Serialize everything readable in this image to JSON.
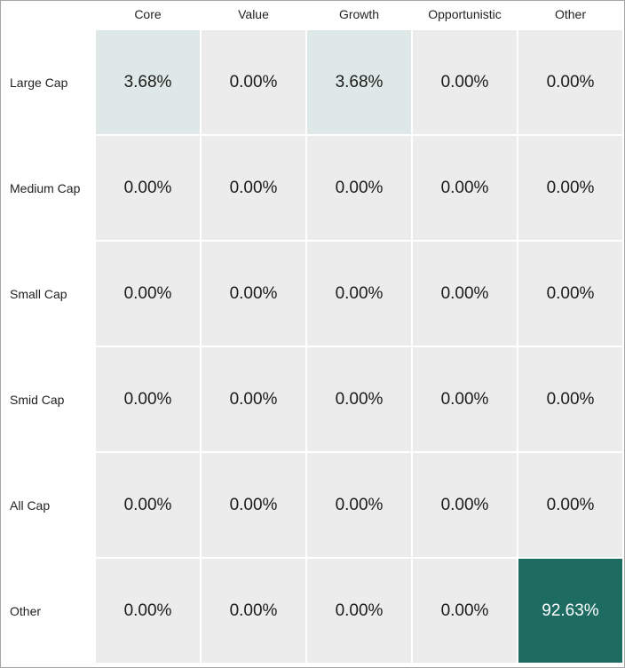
{
  "chart_data": {
    "type": "heatmap",
    "columns": [
      "Core",
      "Value",
      "Growth",
      "Opportunistic",
      "Other"
    ],
    "rows": [
      "Large Cap",
      "Medium Cap",
      "Small Cap",
      "Smid Cap",
      "All Cap",
      "Other"
    ],
    "values": [
      [
        3.68,
        0.0,
        3.68,
        0.0,
        0.0
      ],
      [
        0.0,
        0.0,
        0.0,
        0.0,
        0.0
      ],
      [
        0.0,
        0.0,
        0.0,
        0.0,
        0.0
      ],
      [
        0.0,
        0.0,
        0.0,
        0.0,
        0.0
      ],
      [
        0.0,
        0.0,
        0.0,
        0.0,
        0.0
      ],
      [
        0.0,
        0.0,
        0.0,
        0.0,
        92.63
      ]
    ],
    "value_format": "percent_2dp",
    "colors": {
      "zero": "#ececec",
      "low": "#e6eeec",
      "high": "#1e6b62",
      "text_dark": "#1b1b1b",
      "text_light": "#ffffff"
    }
  }
}
